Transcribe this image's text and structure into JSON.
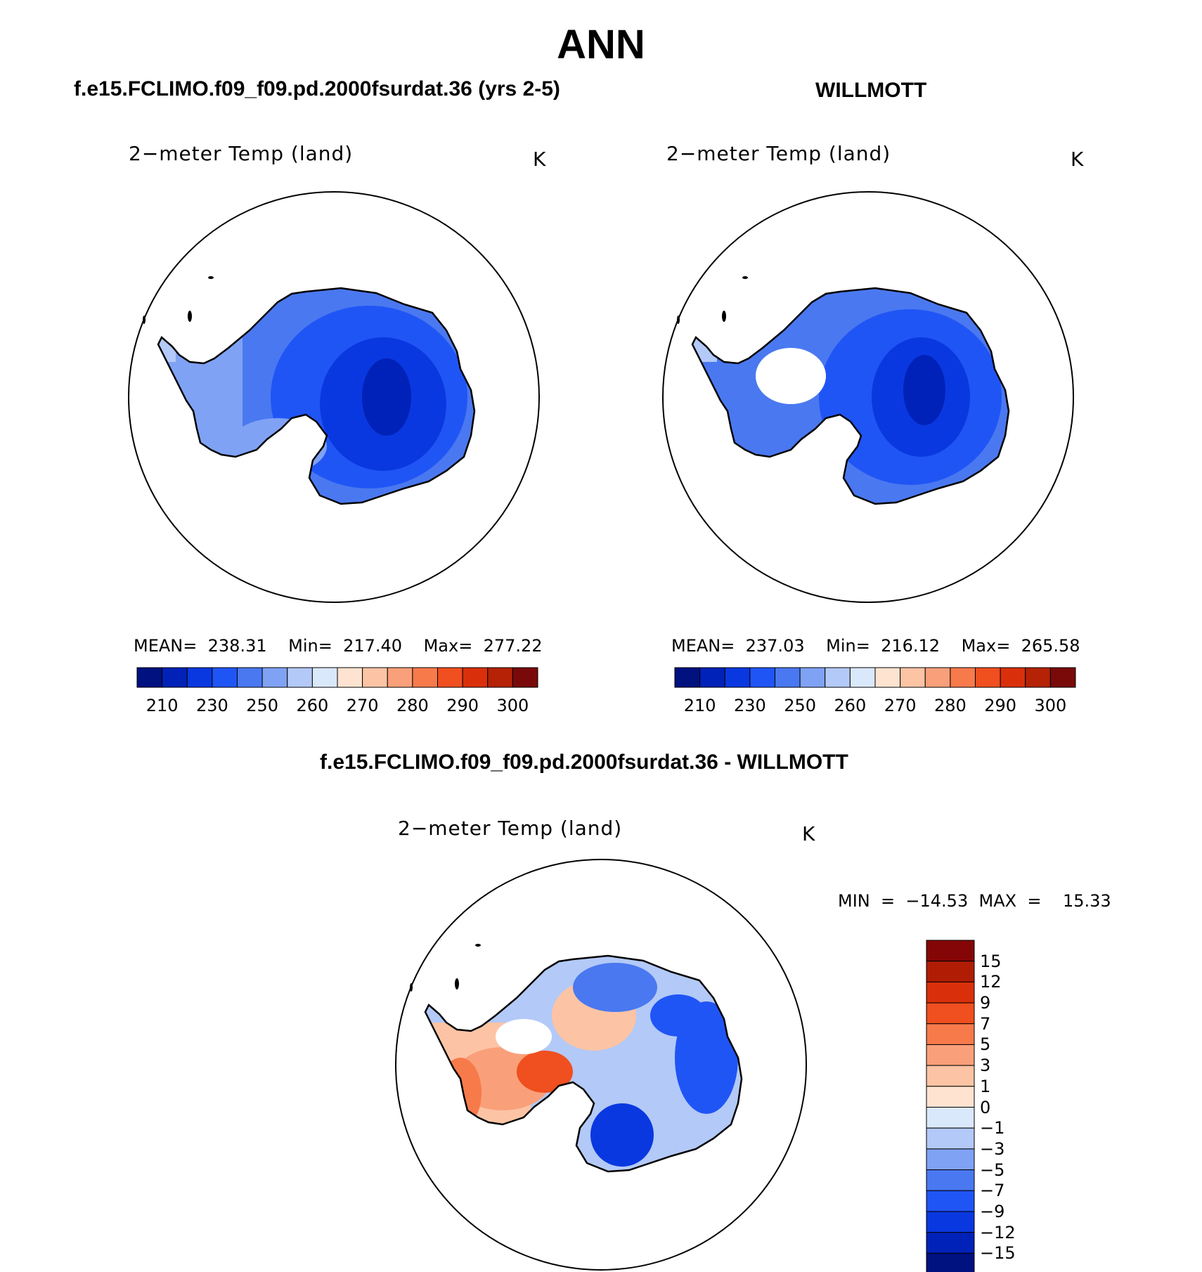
{
  "title": "ANN",
  "panels": [
    {
      "id": "model",
      "heading": "f.e15.FCLIMO.f09_f09.pd.2000fsurdat.36 (yrs 2-5)",
      "label": "2−meter Temp (land)",
      "units": "K",
      "stats": {
        "mean_label": "MEAN=",
        "mean": "238.31",
        "min_label": "Min=",
        "min": "217.40",
        "max_label": "Max=",
        "max": "277.22"
      },
      "colorbar_ticks": [
        "210",
        "230",
        "250",
        "260",
        "270",
        "280",
        "290",
        "300"
      ]
    },
    {
      "id": "obs",
      "heading": "WILLMOTT",
      "label": "2−meter Temp (land)",
      "units": "K",
      "stats": {
        "mean_label": "MEAN=",
        "mean": "237.03",
        "min_label": "Min=",
        "min": "216.12",
        "max_label": "Max=",
        "max": "265.58"
      },
      "colorbar_ticks": [
        "210",
        "230",
        "250",
        "260",
        "270",
        "280",
        "290",
        "300"
      ]
    },
    {
      "id": "diff",
      "heading": "f.e15.FCLIMO.f09_f09.pd.2000fsurdat.36 - WILLMOTT",
      "label": "2−meter Temp (land)",
      "units": "K",
      "stats": {
        "min_label": "MIN",
        "min_eq": "=",
        "min": "−14.53",
        "max_label": "MAX",
        "max_eq": "=",
        "max": "15.33"
      },
      "colorbar_ticks": [
        "15",
        "12",
        "9",
        "7",
        "5",
        "3",
        "1",
        "0",
        "−1",
        "−3",
        "−5",
        "−7",
        "−9",
        "−12",
        "−15"
      ]
    }
  ],
  "colors": {
    "abs_scale": [
      "#001180",
      "#0022b8",
      "#0a38e0",
      "#2055f5",
      "#4a78f0",
      "#7fa2f5",
      "#b3c9f7",
      "#dae8fb",
      "#fde3d0",
      "#fcc4a4",
      "#f9a07a",
      "#f77a4b",
      "#f04f1f",
      "#d9300b",
      "#b52205",
      "#7a0a0a"
    ],
    "diff_scale": [
      "#850606",
      "#b01d04",
      "#d9300b",
      "#f04f1f",
      "#f77a4b",
      "#f9a07a",
      "#fcc4a4",
      "#fde3d0",
      "#dae8fb",
      "#b3c9f7",
      "#7fa2f5",
      "#4a78f0",
      "#2055f5",
      "#0a38e0",
      "#0022b8",
      "#001180"
    ]
  },
  "chart_data": [
    {
      "type": "heatmap",
      "title": "f.e15.FCLIMO.f09_f09.pd.2000fsurdat.36 (yrs 2-5)",
      "variable": "2−meter Temp (land)",
      "units": "K",
      "projection": "south polar stereographic",
      "mean": 238.31,
      "min": 217.4,
      "max": 277.22,
      "colorbar_levels": [
        210,
        220,
        230,
        240,
        250,
        255,
        260,
        265,
        270,
        275,
        280,
        285,
        290,
        295,
        300
      ],
      "colorbar_tick_labels": [
        210,
        230,
        250,
        260,
        270,
        280,
        290,
        300
      ]
    },
    {
      "type": "heatmap",
      "title": "WILLMOTT",
      "variable": "2−meter Temp (land)",
      "units": "K",
      "projection": "south polar stereographic",
      "mean": 237.03,
      "min": 216.12,
      "max": 265.58,
      "colorbar_levels": [
        210,
        220,
        230,
        240,
        250,
        255,
        260,
        265,
        270,
        275,
        280,
        285,
        290,
        295,
        300
      ],
      "colorbar_tick_labels": [
        210,
        230,
        250,
        260,
        270,
        280,
        290,
        300
      ]
    },
    {
      "type": "heatmap",
      "title": "f.e15.FCLIMO.f09_f09.pd.2000fsurdat.36 - WILLMOTT",
      "variable": "2−meter Temp (land)",
      "units": "K",
      "projection": "south polar stereographic",
      "min": -14.53,
      "max": 15.33,
      "colorbar_levels": [
        15,
        12,
        9,
        7,
        5,
        3,
        1,
        0,
        -1,
        -3,
        -5,
        -7,
        -9,
        -12,
        -15
      ]
    }
  ]
}
